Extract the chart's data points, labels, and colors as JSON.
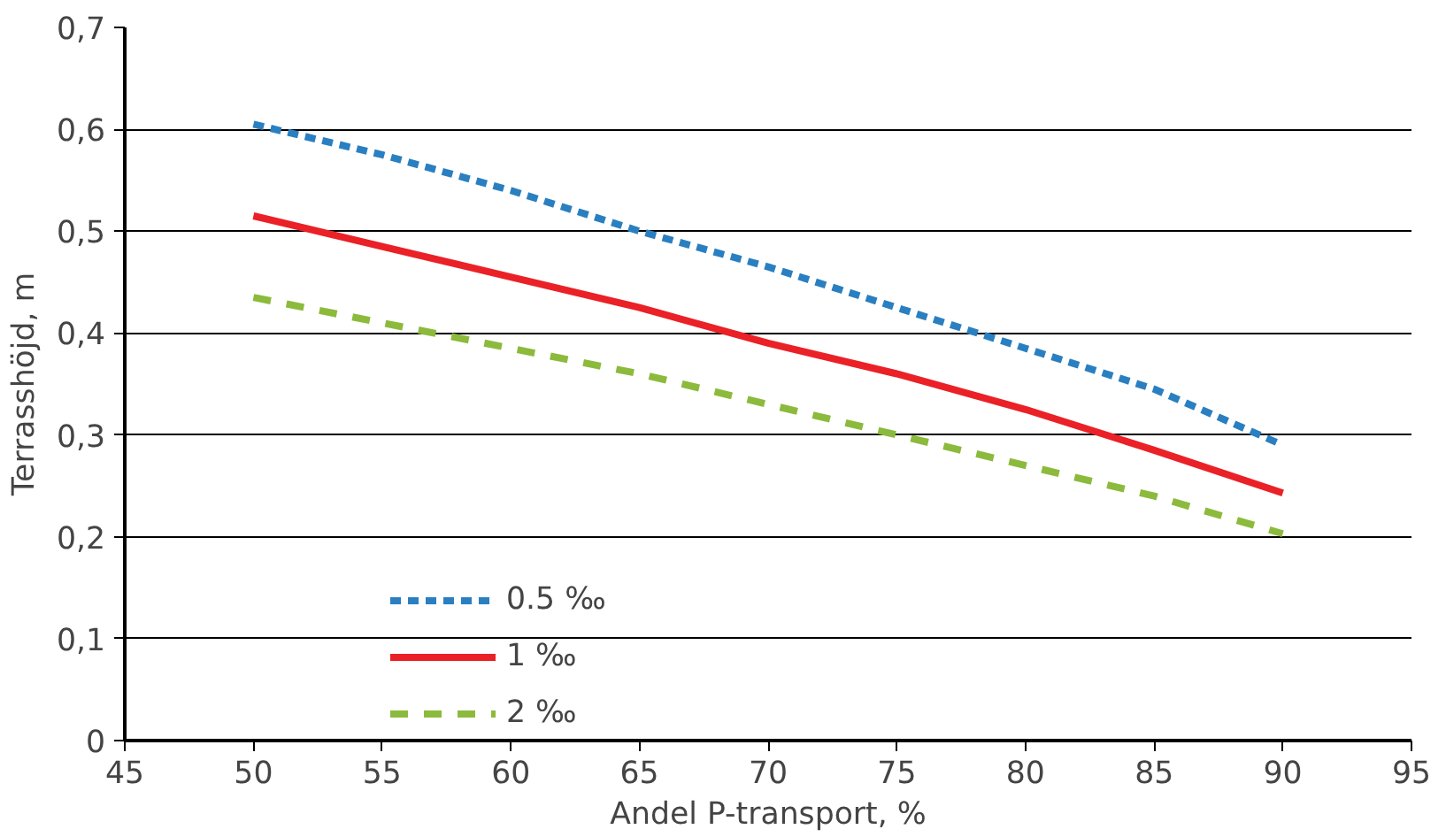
{
  "chart_data": {
    "type": "line",
    "xlabel": "Andel P-transport, %",
    "ylabel": "Terrasshöjd, m",
    "x": [
      50,
      55,
      60,
      65,
      70,
      75,
      80,
      85,
      90
    ],
    "series": [
      {
        "name": "0.5 ‰",
        "color": "#2a7fc1",
        "line_style": "dotted",
        "values": [
          0.605,
          0.575,
          0.54,
          0.5,
          0.465,
          0.425,
          0.385,
          0.345,
          0.29
        ]
      },
      {
        "name": "1 ‰",
        "color": "#ea2127",
        "line_style": "solid",
        "values": [
          0.515,
          0.485,
          0.455,
          0.425,
          0.39,
          0.36,
          0.325,
          0.285,
          0.243
        ]
      },
      {
        "name": "2 ‰",
        "color": "#8cba3c",
        "line_style": "dashed",
        "values": [
          0.435,
          0.41,
          0.385,
          0.36,
          0.33,
          0.3,
          0.27,
          0.24,
          0.203
        ]
      }
    ],
    "xlim": [
      45,
      95
    ],
    "xticks": [
      45,
      50,
      55,
      60,
      65,
      70,
      75,
      80,
      85,
      90,
      95
    ],
    "ylim": [
      0,
      0.7
    ],
    "yticks": [
      {
        "value": 0,
        "label": "0"
      },
      {
        "value": 0.1,
        "label": "0,1"
      },
      {
        "value": 0.2,
        "label": "0,2"
      },
      {
        "value": 0.3,
        "label": "0,3"
      },
      {
        "value": 0.4,
        "label": "0,4"
      },
      {
        "value": 0.5,
        "label": "0,5"
      },
      {
        "value": 0.6,
        "label": "0,6"
      },
      {
        "value": 0.7,
        "label": "0,7"
      }
    ],
    "grid": "y",
    "legend": "bottom left",
    "marker": "none"
  }
}
